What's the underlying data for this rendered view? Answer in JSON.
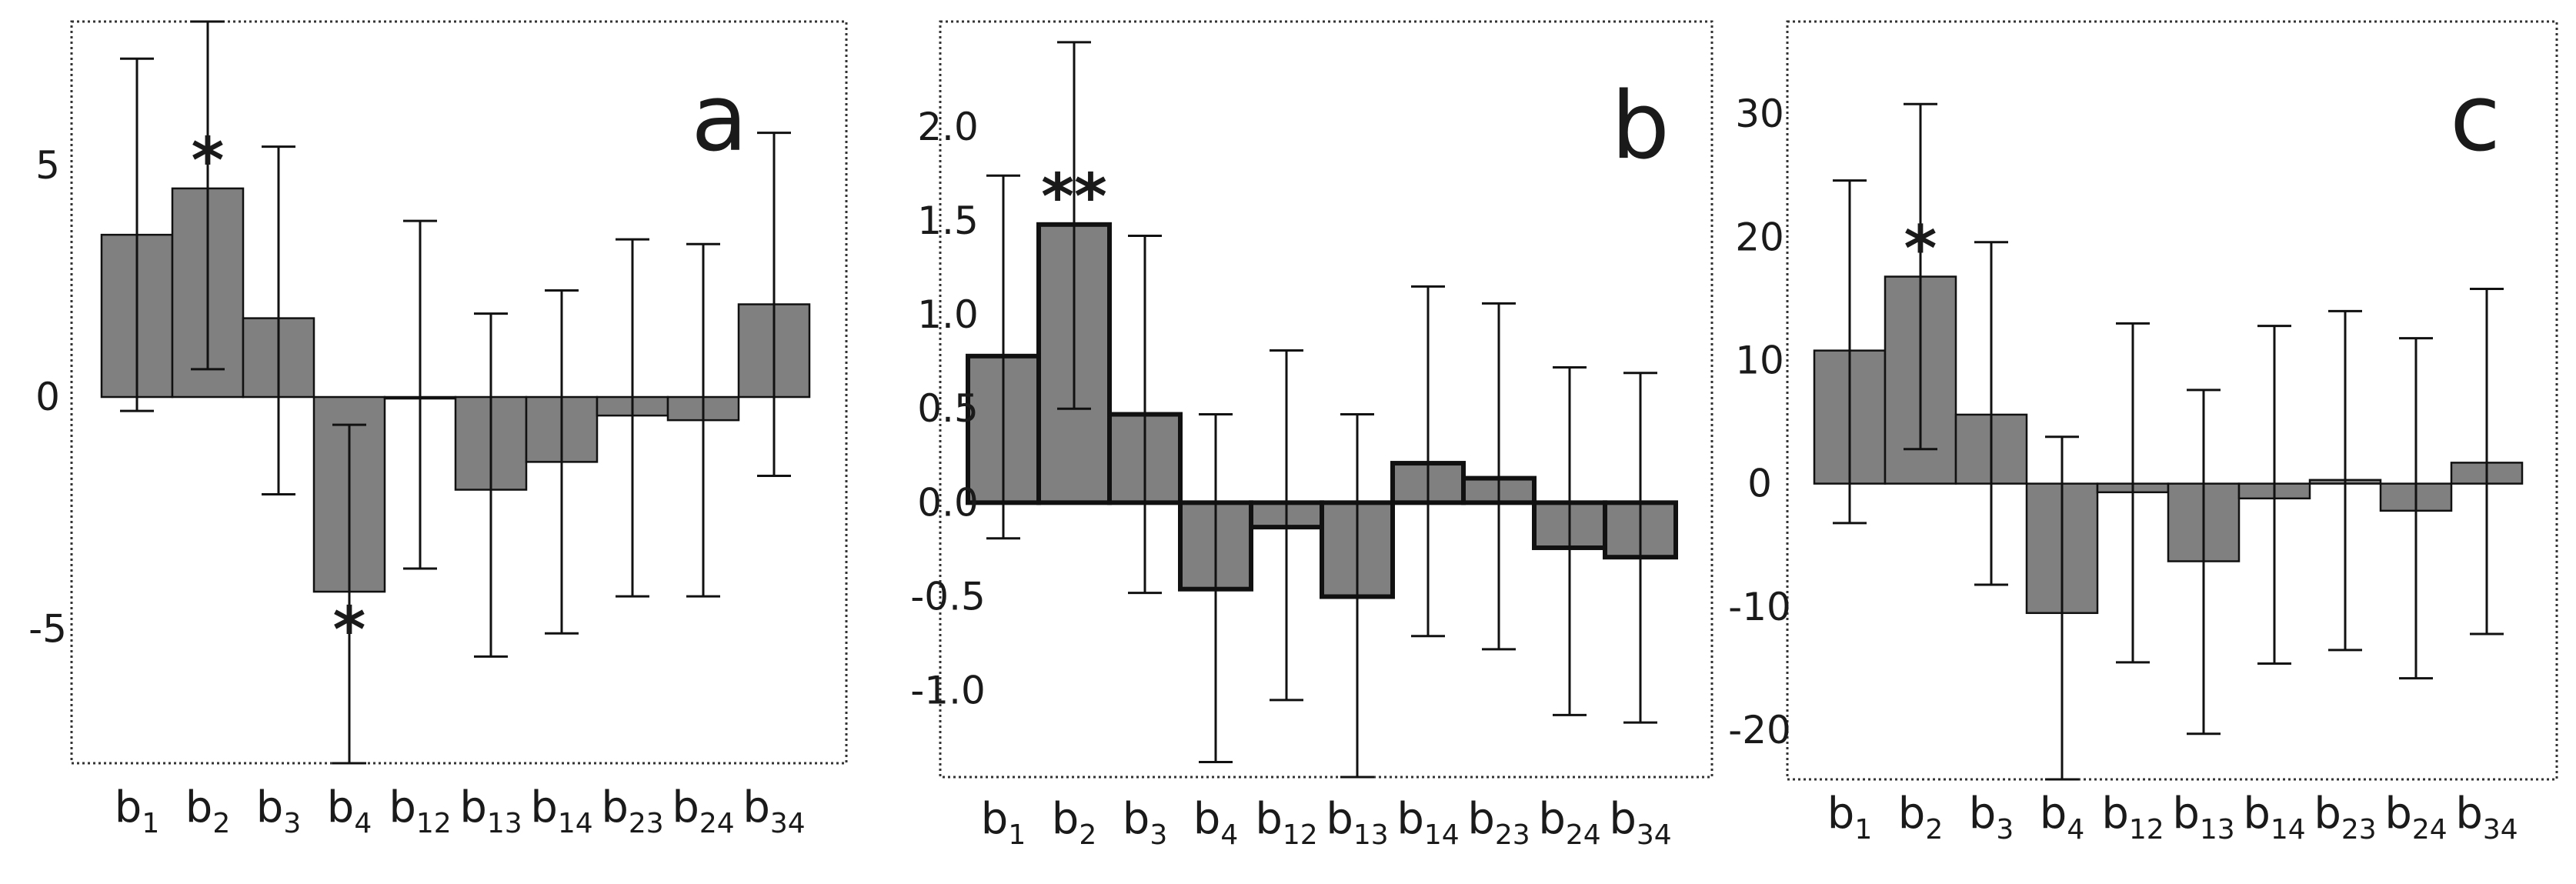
{
  "chart_data": [
    {
      "type": "bar",
      "panel_label": "a",
      "categories": [
        "b1",
        "b2",
        "b3",
        "b4",
        "b12",
        "b13",
        "b14",
        "b23",
        "b24",
        "b34"
      ],
      "category_labels": [
        {
          "base": "b",
          "sub": "1"
        },
        {
          "base": "b",
          "sub": "2"
        },
        {
          "base": "b",
          "sub": "3"
        },
        {
          "base": "b",
          "sub": "4"
        },
        {
          "base": "b",
          "sub": "12"
        },
        {
          "base": "b",
          "sub": "13"
        },
        {
          "base": "b",
          "sub": "14"
        },
        {
          "base": "b",
          "sub": "23"
        },
        {
          "base": "b",
          "sub": "24"
        },
        {
          "base": "b",
          "sub": "34"
        }
      ],
      "values": [
        3.5,
        4.5,
        1.7,
        -4.2,
        0.0,
        -2.0,
        -1.4,
        -0.4,
        -0.5,
        2.0
      ],
      "error_low": [
        -0.3,
        0.6,
        -2.1,
        -7.9,
        -3.7,
        -5.6,
        -5.1,
        -4.3,
        -4.3,
        -1.7
      ],
      "error_high": [
        7.3,
        8.1,
        5.4,
        -0.6,
        3.8,
        1.8,
        2.3,
        3.4,
        3.3,
        5.7
      ],
      "significance": [
        "",
        "*",
        "",
        "*",
        "",
        "",
        "",
        "",
        "",
        ""
      ],
      "yticks": [
        5,
        0,
        -5
      ],
      "ytick_labels": [
        "5",
        "0",
        "-5"
      ],
      "ylim": [
        -7.9,
        8.1
      ],
      "bar_outline": "thin",
      "title": "",
      "xlabel": "",
      "ylabel": ""
    },
    {
      "type": "bar",
      "panel_label": "b",
      "categories": [
        "b1",
        "b2",
        "b3",
        "b4",
        "b12",
        "b13",
        "b14",
        "b23",
        "b24",
        "b34"
      ],
      "category_labels": [
        {
          "base": "b",
          "sub": "1"
        },
        {
          "base": "b",
          "sub": "2"
        },
        {
          "base": "b",
          "sub": "3"
        },
        {
          "base": "b",
          "sub": "4"
        },
        {
          "base": "b",
          "sub": "12"
        },
        {
          "base": "b",
          "sub": "13"
        },
        {
          "base": "b",
          "sub": "14"
        },
        {
          "base": "b",
          "sub": "23"
        },
        {
          "base": "b",
          "sub": "24"
        },
        {
          "base": "b",
          "sub": "34"
        }
      ],
      "values": [
        0.78,
        1.48,
        0.47,
        -0.46,
        -0.13,
        -0.5,
        0.21,
        0.13,
        -0.24,
        -0.29
      ],
      "error_low": [
        -0.19,
        0.5,
        -0.48,
        -1.38,
        -1.05,
        -1.46,
        -0.71,
        -0.78,
        -1.13,
        -1.17
      ],
      "error_high": [
        1.74,
        2.45,
        1.42,
        0.47,
        0.81,
        0.47,
        1.15,
        1.06,
        0.72,
        0.69
      ],
      "significance": [
        "",
        "**",
        "",
        "",
        "",
        "",
        "",
        "",
        "",
        ""
      ],
      "yticks": [
        2.0,
        1.5,
        1.0,
        0.5,
        0.0,
        -0.5,
        -1.0
      ],
      "ytick_labels": [
        "2.0",
        "1.5",
        "1.0",
        "0.5",
        "0.0",
        "-0.5",
        "-1.0"
      ],
      "ylim": [
        -1.46,
        2.56
      ],
      "bar_outline": "thick",
      "title": "",
      "xlabel": "",
      "ylabel": ""
    },
    {
      "type": "bar",
      "panel_label": "c",
      "categories": [
        "b1",
        "b2",
        "b3",
        "b4",
        "b12",
        "b13",
        "b14",
        "b23",
        "b24",
        "b34"
      ],
      "category_labels": [
        {
          "base": "b",
          "sub": "1"
        },
        {
          "base": "b",
          "sub": "2"
        },
        {
          "base": "b",
          "sub": "3"
        },
        {
          "base": "b",
          "sub": "4"
        },
        {
          "base": "b",
          "sub": "12"
        },
        {
          "base": "b",
          "sub": "13"
        },
        {
          "base": "b",
          "sub": "14"
        },
        {
          "base": "b",
          "sub": "23"
        },
        {
          "base": "b",
          "sub": "24"
        },
        {
          "base": "b",
          "sub": "34"
        }
      ],
      "values": [
        10.8,
        16.8,
        5.6,
        -10.5,
        -0.7,
        -6.3,
        -1.2,
        0.3,
        -2.2,
        1.7
      ],
      "error_low": [
        -3.2,
        2.8,
        -8.2,
        -24.0,
        -14.5,
        -20.3,
        -14.6,
        -13.5,
        -15.8,
        -12.2
      ],
      "error_high": [
        24.6,
        30.8,
        19.6,
        3.8,
        13.0,
        7.6,
        12.8,
        14.0,
        11.8,
        15.8
      ],
      "significance": [
        "",
        "*",
        "",
        "",
        "",
        "",
        "",
        "",
        "",
        ""
      ],
      "yticks": [
        30,
        20,
        10,
        0,
        -10,
        -20
      ],
      "ytick_labels": [
        "30",
        "20",
        "10",
        "0",
        "-10",
        "-20"
      ],
      "ylim": [
        -24.0,
        37.5
      ],
      "bar_outline": "thin",
      "title": "",
      "xlabel": "",
      "ylabel": ""
    }
  ],
  "style": {
    "bar_fill": "#808080",
    "bar_stroke": "#111111",
    "frame_stroke": "#333333",
    "text_color": "#1a1a1a"
  }
}
